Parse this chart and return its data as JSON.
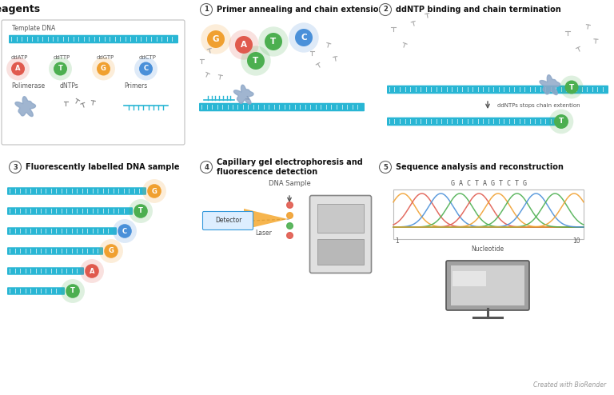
{
  "bg_color": "#ffffff",
  "dna_color": "#29b6d4",
  "dna_stripe_color": "#ffffff",
  "polymerase_color": "#8fa8c8",
  "ddntp_labels": [
    "ddATP",
    "ddTTP",
    "ddGTP",
    "ddCTP"
  ],
  "ddntp_colors": [
    "#e05a4e",
    "#4caf50",
    "#f0a030",
    "#4a90d9"
  ],
  "ddntp_letters": [
    "A",
    "T",
    "G",
    "C"
  ],
  "fl_colors": [
    "#f0a030",
    "#4caf50",
    "#4a90d9",
    "#f0a030",
    "#e05a4e",
    "#4caf50"
  ],
  "fl_letters": [
    "G",
    "T",
    "C",
    "G",
    "A",
    "T"
  ],
  "nuc_colors_1": [
    "#f0a030",
    "#e05a4e",
    "#4caf50",
    "#4a90d9",
    "#4caf50"
  ],
  "nuc_letters_1": [
    "G",
    "A",
    "T",
    "C",
    "T"
  ],
  "nt_color_map": {
    "G": "#f0a030",
    "A": "#e05a4e",
    "C": "#4a90d9",
    "T": "#4caf50"
  },
  "nucleotide_sequence": "G A C T A G T C T G",
  "nucleotide_seq_list": [
    "G",
    "A",
    "C",
    "T",
    "A",
    "G",
    "T",
    "C",
    "T",
    "G"
  ],
  "created_text": "Created with BioRender",
  "section_headers": {
    "reagents": "Reagents",
    "s1": "Primer annealing and chain extension",
    "s2": "ddNTP binding and chain termination",
    "s3": "Fluorescently labelled DNA sample",
    "s4": "Capillary gel electrophoresis and\nfluorescence detection",
    "s5": "Sequence analysis and reconstruction"
  }
}
